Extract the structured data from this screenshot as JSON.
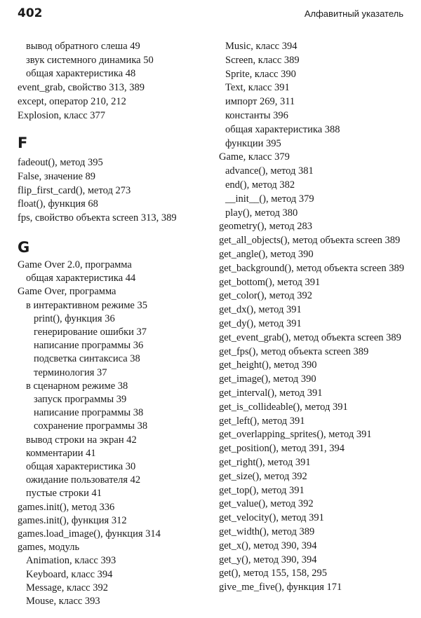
{
  "header": {
    "page_number": "402",
    "running_title": "Алфавитный указатель"
  },
  "left_column": {
    "blocks": [
      {
        "letter": "",
        "entries": [
          {
            "level": 1,
            "text": "вывод обратного слеша 49"
          },
          {
            "level": 1,
            "text": "звук системного динамика 50"
          },
          {
            "level": 1,
            "text": "общая характеристика 48"
          },
          {
            "level": 0,
            "text": "event_grab, свойство 313, 389"
          },
          {
            "level": 0,
            "text": "except, оператор 210, 212"
          },
          {
            "level": 0,
            "text": "Explosion, класс 377"
          }
        ]
      },
      {
        "letter": "F",
        "entries": [
          {
            "level": 0,
            "text": "fadeout(), метод 395"
          },
          {
            "level": 0,
            "text": "False, значение 89"
          },
          {
            "level": 0,
            "text": "flip_first_card(), метод 273"
          },
          {
            "level": 0,
            "text": "float(), функция 68"
          },
          {
            "level": 0,
            "text": "fps, свойство объекта screen 313, 389"
          }
        ]
      },
      {
        "letter": "G",
        "entries": [
          {
            "level": 0,
            "text": "Game Over 2.0, программа"
          },
          {
            "level": 1,
            "text": "общая характеристика 44"
          },
          {
            "level": 0,
            "text": "Game Over, программа"
          },
          {
            "level": 1,
            "text": "в интерактивном режиме 35"
          },
          {
            "level": 2,
            "text": "print(), функция 36"
          },
          {
            "level": 2,
            "text": "генерирование ошибки 37"
          },
          {
            "level": 2,
            "text": "написание программы 36"
          },
          {
            "level": 2,
            "text": "подсветка синтаксиса 38"
          },
          {
            "level": 2,
            "text": "терминология 37"
          },
          {
            "level": 1,
            "text": "в сценарном режиме 38"
          },
          {
            "level": 2,
            "text": "запуск программы 39"
          },
          {
            "level": 2,
            "text": "написание программы 38"
          },
          {
            "level": 2,
            "text": "сохранение программы 38"
          },
          {
            "level": 1,
            "text": "вывод строки на экран 42"
          },
          {
            "level": 1,
            "text": "комментарии 41"
          },
          {
            "level": 1,
            "text": "общая характеристика 30"
          },
          {
            "level": 1,
            "text": "ожидание пользователя 42"
          },
          {
            "level": 1,
            "text": "пустые строки 41"
          },
          {
            "level": 0,
            "text": "games.init(), метод 336"
          },
          {
            "level": 0,
            "text": "games.init(), функция 312"
          },
          {
            "level": 0,
            "text": "games.load_image(), функция 314"
          },
          {
            "level": 0,
            "text": "games, модуль"
          },
          {
            "level": 1,
            "text": "Animation, класс 393"
          },
          {
            "level": 1,
            "text": "Keyboard, класс 394"
          },
          {
            "level": 1,
            "text": "Message, класс 392"
          },
          {
            "level": 1,
            "text": "Mouse, класс 393"
          }
        ]
      }
    ]
  },
  "right_column": {
    "entries": [
      {
        "level": 1,
        "text": "Music, класс 394"
      },
      {
        "level": 1,
        "text": "Screen, класс 389"
      },
      {
        "level": 1,
        "text": "Sprite, класс 390"
      },
      {
        "level": 1,
        "text": "Text, класс 391"
      },
      {
        "level": 1,
        "text": "импорт 269, 311"
      },
      {
        "level": 1,
        "text": "константы 396"
      },
      {
        "level": 1,
        "text": "общая характеристика 388"
      },
      {
        "level": 1,
        "text": "функции 395"
      },
      {
        "level": 0,
        "text": "Game, класс 379"
      },
      {
        "level": 1,
        "text": "advance(), метод 381"
      },
      {
        "level": 1,
        "text": "end(), метод 382"
      },
      {
        "level": 1,
        "text": "__init__(), метод 379"
      },
      {
        "level": 1,
        "text": "play(), метод 380"
      },
      {
        "level": 0,
        "text": "geometry(), метод 283"
      },
      {
        "level": 0,
        "text": "get_all_objects(), метод объекта screen 389"
      },
      {
        "level": 0,
        "text": "get_angle(), метод 390"
      },
      {
        "level": 0,
        "text": "get_background(), метод объекта screen 389"
      },
      {
        "level": 0,
        "text": "get_bottom(), метод 391"
      },
      {
        "level": 0,
        "text": "get_color(), метод 392"
      },
      {
        "level": 0,
        "text": "get_dx(), метод 391"
      },
      {
        "level": 0,
        "text": "get_dy(), метод 391"
      },
      {
        "level": 0,
        "text": "get_event_grab(), метод объекта screen 389"
      },
      {
        "level": 0,
        "text": "get_fps(), метод объекта screen 389"
      },
      {
        "level": 0,
        "text": "get_height(), метод 390"
      },
      {
        "level": 0,
        "text": "get_image(), метод 390"
      },
      {
        "level": 0,
        "text": "get_interval(), метод 391"
      },
      {
        "level": 0,
        "text": "get_is_collideable(), метод 391"
      },
      {
        "level": 0,
        "text": "get_left(), метод 391"
      },
      {
        "level": 0,
        "text": "get_overlapping_sprites(), метод 391"
      },
      {
        "level": 0,
        "text": "get_position(), метод 391, 394"
      },
      {
        "level": 0,
        "text": "get_right(), метод 391"
      },
      {
        "level": 0,
        "text": "get_size(), метод 392"
      },
      {
        "level": 0,
        "text": "get_top(), метод 391"
      },
      {
        "level": 0,
        "text": "get_value(), метод 392"
      },
      {
        "level": 0,
        "text": "get_velocity(), метод 391"
      },
      {
        "level": 0,
        "text": "get_width(), метод 389"
      },
      {
        "level": 0,
        "text": "get_x(), метод 390, 394"
      },
      {
        "level": 0,
        "text": "get_y(), метод 390, 394"
      },
      {
        "level": 0,
        "text": "get(), метод 155, 158, 295"
      },
      {
        "level": 0,
        "text": "give_me_five(), функция 171"
      }
    ]
  }
}
